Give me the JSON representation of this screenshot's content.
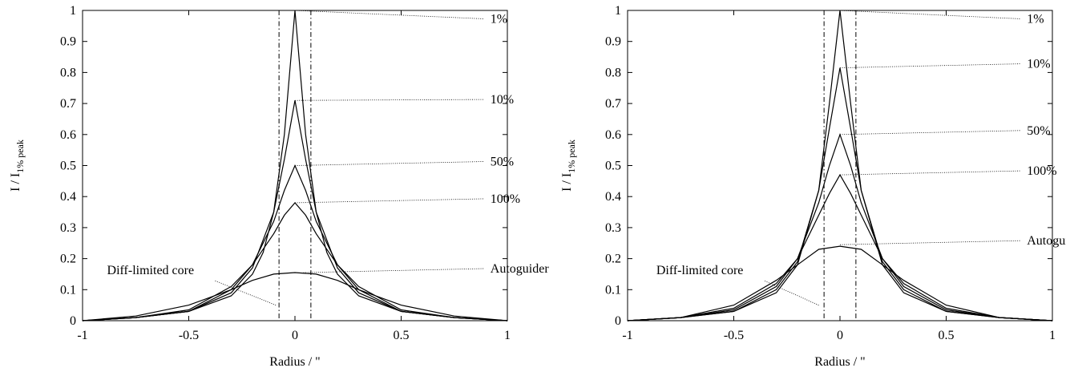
{
  "chart_data": [
    {
      "type": "line",
      "xlabel": "Radius / \"",
      "ylabel": {
        "main": "I / I",
        "sub": "1% peak"
      },
      "xlim": [
        -1,
        1
      ],
      "ylim": [
        0,
        1
      ],
      "xticks": [
        "-1",
        "-0.5",
        "0",
        "0.5",
        "1"
      ],
      "yticks": [
        "0",
        "0.1",
        "0.2",
        "0.3",
        "0.4",
        "0.5",
        "0.6",
        "0.7",
        "0.8",
        "0.9",
        "1"
      ],
      "grid": false,
      "core_lines_x": [
        -0.075,
        0.075
      ],
      "series": [
        {
          "name": "1%",
          "peak": 1.0,
          "halfwidth": 0.1,
          "points": [
            [
              -1,
              0
            ],
            [
              -0.75,
              0.01
            ],
            [
              -0.5,
              0.03
            ],
            [
              -0.3,
              0.08
            ],
            [
              -0.2,
              0.15
            ],
            [
              -0.15,
              0.22
            ],
            [
              -0.1,
              0.35
            ],
            [
              -0.05,
              0.6
            ],
            [
              0,
              1.0
            ],
            [
              0.05,
              0.6
            ],
            [
              0.1,
              0.35
            ],
            [
              0.15,
              0.22
            ],
            [
              0.2,
              0.15
            ],
            [
              0.3,
              0.08
            ],
            [
              0.5,
              0.03
            ],
            [
              0.75,
              0.01
            ],
            [
              1,
              0
            ]
          ]
        },
        {
          "name": "10%",
          "peak": 0.71,
          "halfwidth": 0.14,
          "points": [
            [
              -1,
              0
            ],
            [
              -0.75,
              0.01
            ],
            [
              -0.5,
              0.03
            ],
            [
              -0.3,
              0.09
            ],
            [
              -0.2,
              0.17
            ],
            [
              -0.1,
              0.35
            ],
            [
              -0.05,
              0.52
            ],
            [
              0,
              0.71
            ],
            [
              0.05,
              0.52
            ],
            [
              0.1,
              0.35
            ],
            [
              0.2,
              0.17
            ],
            [
              0.3,
              0.09
            ],
            [
              0.5,
              0.03
            ],
            [
              0.75,
              0.01
            ],
            [
              1,
              0
            ]
          ]
        },
        {
          "name": "50%",
          "peak": 0.5,
          "halfwidth": 0.19,
          "points": [
            [
              -1,
              0
            ],
            [
              -0.75,
              0.01
            ],
            [
              -0.5,
              0.03
            ],
            [
              -0.3,
              0.1
            ],
            [
              -0.2,
              0.18
            ],
            [
              -0.1,
              0.32
            ],
            [
              -0.05,
              0.42
            ],
            [
              0,
              0.5
            ],
            [
              0.05,
              0.42
            ],
            [
              0.1,
              0.32
            ],
            [
              0.2,
              0.18
            ],
            [
              0.3,
              0.1
            ],
            [
              0.5,
              0.03
            ],
            [
              0.75,
              0.01
            ],
            [
              1,
              0
            ]
          ]
        },
        {
          "name": "100%",
          "peak": 0.38,
          "halfwidth": 0.23,
          "points": [
            [
              -1,
              0
            ],
            [
              -0.75,
              0.01
            ],
            [
              -0.5,
              0.035
            ],
            [
              -0.3,
              0.11
            ],
            [
              -0.2,
              0.18
            ],
            [
              -0.1,
              0.28
            ],
            [
              -0.05,
              0.34
            ],
            [
              0,
              0.38
            ],
            [
              0.05,
              0.34
            ],
            [
              0.1,
              0.28
            ],
            [
              0.2,
              0.18
            ],
            [
              0.3,
              0.11
            ],
            [
              0.5,
              0.035
            ],
            [
              0.75,
              0.01
            ],
            [
              1,
              0
            ]
          ]
        },
        {
          "name": "Autoguider",
          "peak": 0.155,
          "halfwidth": 0.55,
          "points": [
            [
              -1,
              0
            ],
            [
              -0.75,
              0.015
            ],
            [
              -0.5,
              0.05
            ],
            [
              -0.3,
              0.1
            ],
            [
              -0.2,
              0.13
            ],
            [
              -0.1,
              0.15
            ],
            [
              0,
              0.155
            ],
            [
              0.1,
              0.15
            ],
            [
              0.2,
              0.13
            ],
            [
              0.3,
              0.1
            ],
            [
              0.5,
              0.05
            ],
            [
              0.75,
              0.015
            ],
            [
              1,
              0
            ]
          ]
        }
      ],
      "annotations": [
        {
          "text": "1%",
          "x": 0.92,
          "y": 0.96,
          "point": [
            0,
            1.0
          ]
        },
        {
          "text": "10%",
          "x": 0.92,
          "y": 0.7,
          "point": [
            0,
            0.71
          ]
        },
        {
          "text": "50%",
          "x": 0.92,
          "y": 0.5,
          "point": [
            0,
            0.5
          ]
        },
        {
          "text": "100%",
          "x": 0.92,
          "y": 0.38,
          "point": [
            0,
            0.38
          ]
        },
        {
          "text": "Autoguider",
          "x": 0.92,
          "y": 0.155,
          "point": [
            0.04,
            0.155
          ]
        },
        {
          "text": "Diff-limited core",
          "x": -0.68,
          "y": 0.15,
          "point": [
            -0.09,
            0.05
          ]
        }
      ]
    },
    {
      "type": "line",
      "xlabel": "Radius / \"",
      "ylabel": {
        "main": "I / I",
        "sub": "1% peak"
      },
      "xlim": [
        -1,
        1
      ],
      "ylim": [
        0,
        1
      ],
      "xticks": [
        "-1",
        "-0.5",
        "0",
        "0.5",
        "1"
      ],
      "yticks": [
        "0",
        "0.1",
        "0.2",
        "0.3",
        "0.4",
        "0.5",
        "0.6",
        "0.7",
        "0.8",
        "0.9",
        "1"
      ],
      "grid": false,
      "core_lines_x": [
        -0.075,
        0.075
      ],
      "series": [
        {
          "name": "1%",
          "peak": 1.0,
          "halfwidth": 0.12,
          "points": [
            [
              -1,
              0
            ],
            [
              -0.75,
              0.01
            ],
            [
              -0.5,
              0.03
            ],
            [
              -0.3,
              0.09
            ],
            [
              -0.2,
              0.18
            ],
            [
              -0.1,
              0.42
            ],
            [
              -0.05,
              0.7
            ],
            [
              0,
              1.0
            ],
            [
              0.05,
              0.7
            ],
            [
              0.1,
              0.42
            ],
            [
              0.2,
              0.18
            ],
            [
              0.3,
              0.09
            ],
            [
              0.5,
              0.03
            ],
            [
              0.75,
              0.01
            ],
            [
              1,
              0
            ]
          ]
        },
        {
          "name": "10%",
          "peak": 0.815,
          "halfwidth": 0.14,
          "points": [
            [
              -1,
              0
            ],
            [
              -0.75,
              0.01
            ],
            [
              -0.5,
              0.03
            ],
            [
              -0.3,
              0.1
            ],
            [
              -0.2,
              0.19
            ],
            [
              -0.1,
              0.42
            ],
            [
              -0.05,
              0.62
            ],
            [
              0,
              0.815
            ],
            [
              0.05,
              0.62
            ],
            [
              0.1,
              0.42
            ],
            [
              0.2,
              0.19
            ],
            [
              0.3,
              0.1
            ],
            [
              0.5,
              0.03
            ],
            [
              0.75,
              0.01
            ],
            [
              1,
              0
            ]
          ]
        },
        {
          "name": "50%",
          "peak": 0.6,
          "halfwidth": 0.17,
          "points": [
            [
              -1,
              0
            ],
            [
              -0.75,
              0.01
            ],
            [
              -0.5,
              0.035
            ],
            [
              -0.3,
              0.11
            ],
            [
              -0.2,
              0.2
            ],
            [
              -0.1,
              0.38
            ],
            [
              -0.05,
              0.5
            ],
            [
              0,
              0.6
            ],
            [
              0.05,
              0.5
            ],
            [
              0.1,
              0.38
            ],
            [
              0.2,
              0.2
            ],
            [
              0.3,
              0.11
            ],
            [
              0.5,
              0.035
            ],
            [
              0.75,
              0.01
            ],
            [
              1,
              0
            ]
          ]
        },
        {
          "name": "100%",
          "peak": 0.47,
          "halfwidth": 0.2,
          "points": [
            [
              -1,
              0
            ],
            [
              -0.75,
              0.01
            ],
            [
              -0.5,
              0.04
            ],
            [
              -0.3,
              0.12
            ],
            [
              -0.2,
              0.2
            ],
            [
              -0.1,
              0.34
            ],
            [
              -0.05,
              0.41
            ],
            [
              0,
              0.47
            ],
            [
              0.05,
              0.41
            ],
            [
              0.1,
              0.34
            ],
            [
              0.2,
              0.2
            ],
            [
              0.3,
              0.12
            ],
            [
              0.5,
              0.04
            ],
            [
              0.75,
              0.01
            ],
            [
              1,
              0
            ]
          ]
        },
        {
          "name": "Autoguider",
          "peak": 0.24,
          "halfwidth": 0.35,
          "points": [
            [
              -1,
              0
            ],
            [
              -0.75,
              0.01
            ],
            [
              -0.5,
              0.05
            ],
            [
              -0.3,
              0.13
            ],
            [
              -0.2,
              0.18
            ],
            [
              -0.1,
              0.23
            ],
            [
              0,
              0.24
            ],
            [
              0.1,
              0.23
            ],
            [
              0.2,
              0.18
            ],
            [
              0.3,
              0.13
            ],
            [
              0.5,
              0.05
            ],
            [
              0.75,
              0.01
            ],
            [
              1,
              0
            ]
          ]
        }
      ],
      "annotations": [
        {
          "text": "1%",
          "x": 0.88,
          "y": 0.96,
          "point": [
            0,
            1.0
          ]
        },
        {
          "text": "10%",
          "x": 0.88,
          "y": 0.815,
          "point": [
            0,
            0.815
          ]
        },
        {
          "text": "50%",
          "x": 0.88,
          "y": 0.6,
          "point": [
            0,
            0.6
          ]
        },
        {
          "text": "100%",
          "x": 0.88,
          "y": 0.47,
          "point": [
            0,
            0.47
          ]
        },
        {
          "text": "Autoguider",
          "x": 0.88,
          "y": 0.245,
          "point": [
            0,
            0.245
          ]
        },
        {
          "text": "Diff-limited core",
          "x": -0.66,
          "y": 0.15,
          "point": [
            -0.1,
            0.05
          ]
        }
      ]
    }
  ]
}
